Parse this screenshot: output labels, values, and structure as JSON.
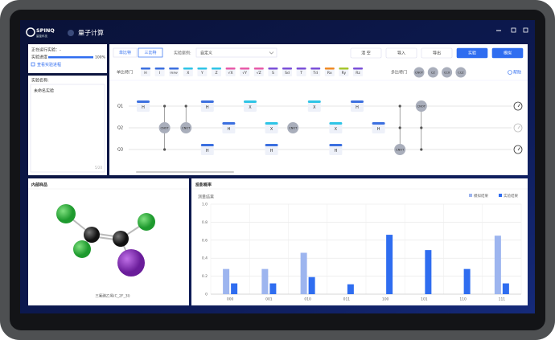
{
  "header": {
    "logo": "SPINQ",
    "logo_sub": "量旋科技",
    "title": "量子计算"
  },
  "sidebar": {
    "running": "正在运行实验：-",
    "progress_label": "实验进度",
    "progress": "100%",
    "view_link": "查看实验进程",
    "name_label": "实验名称:",
    "name_value": "未命名实验",
    "name_count": "5/20"
  },
  "toolbar": {
    "tabs": [
      "单比特",
      "三比特"
    ],
    "case_label": "实验案例:",
    "case_value": "自定义",
    "buttons": [
      "清 空",
      "导入",
      "导出",
      "实验",
      "模拟"
    ]
  },
  "gates": {
    "single_label": "单比特门",
    "single": [
      {
        "label": "H",
        "color": "#3b6fe0"
      },
      {
        "label": "I",
        "color": "#3b6fe0"
      },
      {
        "label": "delay",
        "color": "#3b6fe0"
      },
      {
        "label": "X",
        "color": "#2ec4e6"
      },
      {
        "label": "Y",
        "color": "#2ec4e6"
      },
      {
        "label": "Z",
        "color": "#2ec4e6"
      },
      {
        "label": "√X",
        "color": "#e85aa8"
      },
      {
        "label": "√Y",
        "color": "#e85aa8"
      },
      {
        "label": "√Z",
        "color": "#e85aa8"
      },
      {
        "label": "S",
        "color": "#7b4fd8"
      },
      {
        "label": "Sd",
        "color": "#7b4fd8"
      },
      {
        "label": "T",
        "color": "#7b4fd8"
      },
      {
        "label": "Td",
        "color": "#7b4fd8"
      },
      {
        "label": "Rx",
        "color": "#f08a24"
      },
      {
        "label": "Ry",
        "color": "#a6c62c"
      },
      {
        "label": "Rz",
        "color": "#7b4fd8"
      }
    ],
    "multi_label": "多比特门",
    "multi": [
      "CNOT",
      "CZ",
      "CCX",
      "CCZ"
    ],
    "help": "帮助"
  },
  "circuit": {
    "qubits": [
      "Q1",
      "Q2",
      "Q3"
    ],
    "rows": [
      [
        "H",
        null,
        null,
        "H",
        null,
        "X",
        null,
        null,
        "X",
        null,
        "H",
        null,
        null,
        "CNOT"
      ],
      [
        null,
        "CNOT",
        "CNOT",
        null,
        "H",
        null,
        "X",
        "CNOT",
        null,
        "X",
        null,
        "H",
        null,
        null
      ],
      [
        null,
        null,
        null,
        "H",
        null,
        null,
        "H",
        null,
        null,
        "H",
        null,
        null,
        "CNOT",
        null
      ]
    ]
  },
  "sample": {
    "title": "内部样品",
    "caption": "三氟碘乙烯(C_2F_3I)"
  },
  "chart_data": {
    "type": "bar",
    "title": "投影概率",
    "y_label": "测量结果",
    "categories": [
      "000",
      "001",
      "010",
      "011",
      "100",
      "101",
      "110",
      "111"
    ],
    "series": [
      {
        "name": "模拟结果",
        "color": "#9db5ef",
        "values": [
          0.28,
          0.28,
          0.46,
          0,
          0,
          0,
          0,
          0.65
        ]
      },
      {
        "name": "实验结果",
        "color": "#2f6df0",
        "values": [
          0.12,
          0.12,
          0.19,
          0.11,
          0.66,
          0.49,
          0.28,
          0.12
        ]
      }
    ],
    "ylim": [
      0,
      1
    ],
    "yticks": [
      0,
      0.2,
      0.4,
      0.6,
      0.8,
      {
        "value": 1,
        "label": "1.0"
      }
    ],
    "grid": true,
    "legend": "top-right"
  }
}
